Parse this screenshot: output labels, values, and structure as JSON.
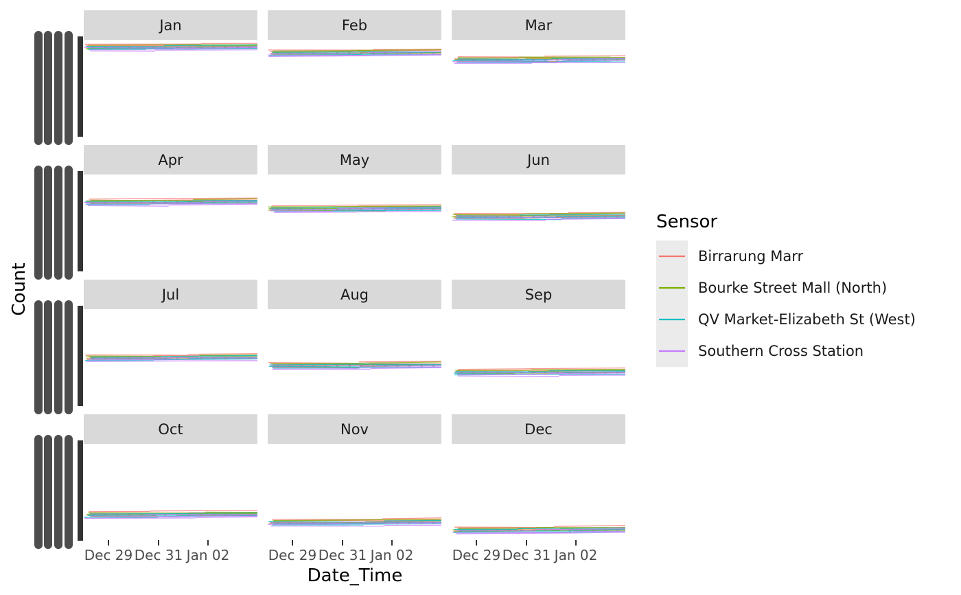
{
  "chart_data": {
    "type": "line",
    "title": "",
    "xlabel": "Date_Time",
    "ylabel": "Count",
    "facet_cols": 3,
    "panels": [
      "Jan",
      "Feb",
      "Mar",
      "Apr",
      "May",
      "Jun",
      "Jul",
      "Aug",
      "Sep",
      "Oct",
      "Nov",
      "Dec"
    ],
    "x_ticks": [
      "Dec 29",
      "Dec 31",
      "Jan 02"
    ],
    "legend": {
      "title": "Sensor",
      "placement": "right"
    },
    "series": [
      {
        "name": "Birrarung Marr",
        "color": "#F8766D"
      },
      {
        "name": "Bourke Street Mall (North)",
        "color": "#7CAE00"
      },
      {
        "name": "QV Market-Elizabeth St (West)",
        "color": "#00BFC4"
      },
      {
        "name": "Southern Cross Station",
        "color": "#C77CFF"
      }
    ],
    "panel_level": [
      0.92,
      0.86,
      0.79,
      0.71,
      0.64,
      0.56,
      0.49,
      0.41,
      0.34,
      0.26,
      0.18,
      0.1
    ],
    "strip_fill": "#D9D9D9",
    "legend_key_fill": "#EBEBEB"
  }
}
